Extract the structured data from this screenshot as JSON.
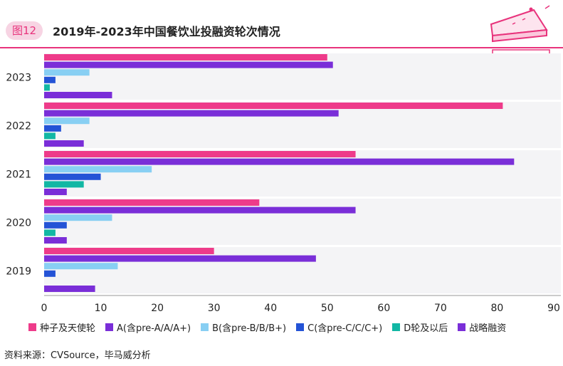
{
  "header": {
    "badge": "图12",
    "title": "2019年-2023年中国餐饮业投融资轮次情况"
  },
  "source": "资料来源：CVSource，毕马威分析",
  "colors": {
    "accent": "#e8337c",
    "badge_bg": "#f7d4e3",
    "axis": "#999999"
  },
  "chart_data": {
    "type": "bar",
    "orientation": "horizontal",
    "title": "2019年-2023年中国餐饮业投融资轮次情况",
    "categories": [
      "2023",
      "2022",
      "2021",
      "2020",
      "2019"
    ],
    "xlim": [
      0,
      90
    ],
    "xticks": [
      0,
      10,
      20,
      30,
      40,
      50,
      60,
      70,
      80,
      90
    ],
    "grid": false,
    "legend_position": "bottom",
    "series": [
      {
        "name": "种子及天使轮",
        "color": "#ee3b8a",
        "values": [
          50,
          81,
          55,
          38,
          30
        ]
      },
      {
        "name": "A(含pre-A/A/A+)",
        "color": "#7a2ed8",
        "values": [
          51,
          52,
          83,
          55,
          48
        ]
      },
      {
        "name": "B(含pre-B/B/B+)",
        "color": "#88cff3",
        "values": [
          8,
          8,
          19,
          12,
          13
        ]
      },
      {
        "name": "C(含pre-C/C/C+)",
        "color": "#2453d6",
        "values": [
          2,
          3,
          10,
          4,
          2
        ]
      },
      {
        "name": "D轮及以后",
        "color": "#12b7a4",
        "values": [
          1,
          2,
          7,
          2,
          0
        ]
      },
      {
        "name": "战略融资",
        "color": "#7a2ed8",
        "values": [
          12,
          7,
          4,
          4,
          9
        ]
      }
    ]
  }
}
